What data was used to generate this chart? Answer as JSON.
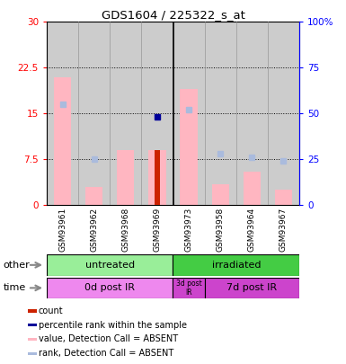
{
  "title": "GDS1604 / 225322_s_at",
  "samples": [
    "GSM93961",
    "GSM93962",
    "GSM93968",
    "GSM93969",
    "GSM93973",
    "GSM93958",
    "GSM93964",
    "GSM93967"
  ],
  "pink_bar_values": [
    21.0,
    3.0,
    9.0,
    9.0,
    19.0,
    3.5,
    5.5,
    2.5
  ],
  "dark_red_bar_values": [
    0,
    0,
    0,
    9.0,
    0,
    0,
    0,
    0
  ],
  "blue_dot_values": [
    null,
    null,
    null,
    14.5,
    null,
    null,
    null,
    null
  ],
  "light_blue_dot_values": [
    55,
    25,
    null,
    null,
    52,
    28,
    26,
    24
  ],
  "ylim_left": [
    0,
    30
  ],
  "ylim_right": [
    0,
    100
  ],
  "yticks_left": [
    0,
    7.5,
    15,
    22.5,
    30
  ],
  "yticks_right": [
    0,
    25,
    50,
    75,
    100
  ],
  "ytick_labels_left": [
    "0",
    "7.5",
    "15",
    "22.5",
    "30"
  ],
  "ytick_labels_right": [
    "0",
    "25",
    "50",
    "75",
    "100%"
  ],
  "pink_bar_color": "#ffb6c1",
  "dark_red_color": "#cc2200",
  "blue_dot_color": "#000099",
  "light_blue_dot_color": "#aabbdd",
  "untreated_color": "#99ee99",
  "irradiated_color": "#44cc44",
  "time_light_color": "#ee88ee",
  "time_dark_color": "#cc44cc"
}
